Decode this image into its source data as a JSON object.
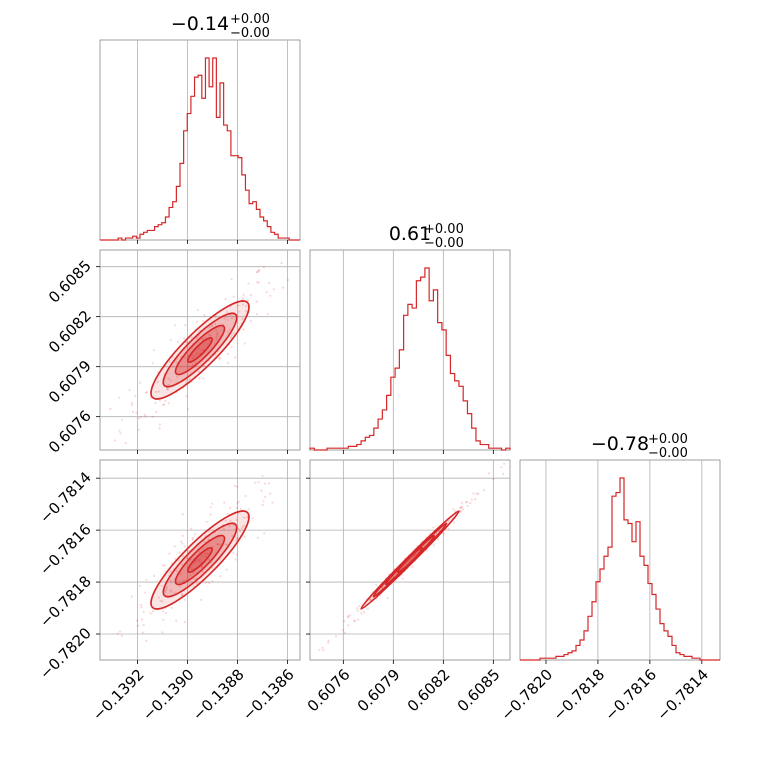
{
  "colors": {
    "accent": "#d62728",
    "grid": "#b0b0b0",
    "frame": "#888888",
    "background": "#ffffff"
  },
  "chart_data": {
    "type": "corner",
    "grid": true,
    "parameters": [
      {
        "title_value": "−0.14",
        "title_sup": "+0.00",
        "title_sub": "−0.00",
        "range": [
          -0.13935,
          -0.13855
        ],
        "ticks": [
          -0.1392,
          -0.139,
          -0.1388,
          -0.1386
        ],
        "tick_labels": [
          "−0.1392",
          "−0.1390",
          "−0.1388",
          "−0.1386"
        ]
      },
      {
        "title_value": "0.61",
        "title_sup": "+0.00",
        "title_sub": "−0.00",
        "range": [
          0.6074,
          0.6086
        ],
        "ticks": [
          0.6076,
          0.6079,
          0.6082,
          0.6085
        ],
        "tick_labels": [
          "0.6076",
          "0.6079",
          "0.6082",
          "0.6085"
        ]
      },
      {
        "title_value": "−0.78",
        "title_sup": "+0.00",
        "title_sub": "−0.00",
        "range": [
          -0.7821,
          -0.78133
        ],
        "ticks": [
          -0.782,
          -0.7818,
          -0.7816,
          -0.7814
        ],
        "tick_labels": [
          "−0.7820",
          "−0.7818",
          "−0.7816",
          "−0.7814"
        ]
      }
    ],
    "histograms": [
      [
        0,
        0,
        0,
        0,
        0,
        1,
        0,
        1,
        1,
        2,
        1,
        3,
        4,
        5,
        5,
        7,
        8,
        9,
        12,
        17,
        20,
        28,
        40,
        57,
        66,
        75,
        85,
        86,
        74,
        95,
        80,
        95,
        64,
        82,
        60,
        57,
        44,
        44,
        43,
        34,
        26,
        19,
        20,
        16,
        12,
        10,
        7,
        4,
        3,
        1,
        1,
        1,
        0,
        0,
        0
      ],
      [
        1,
        0,
        0,
        0,
        1,
        1,
        1,
        1,
        1,
        2,
        2,
        3,
        5,
        7,
        8,
        12,
        17,
        22,
        30,
        40,
        45,
        55,
        74,
        80,
        78,
        93,
        95,
        100,
        82,
        88,
        70,
        66,
        52,
        42,
        38,
        35,
        27,
        20,
        12,
        5,
        3,
        3,
        1,
        1,
        1,
        0,
        1
      ],
      [
        0,
        0,
        0,
        0,
        0,
        1,
        1,
        1,
        1,
        2,
        2,
        3,
        4,
        5,
        8,
        11,
        16,
        24,
        32,
        43,
        50,
        57,
        62,
        90,
        92,
        100,
        77,
        75,
        65,
        76,
        57,
        52,
        42,
        36,
        28,
        20,
        16,
        13,
        8,
        4,
        3,
        2,
        2,
        1,
        1,
        0,
        0,
        0,
        0,
        0
      ]
    ],
    "correlations": {
      "1,0": 0.88,
      "2,0": 0.88,
      "2,1": 0.995
    },
    "contour_levels": [
      0.5,
      1.0,
      1.5,
      2.0
    ],
    "samples_shown": 220
  }
}
